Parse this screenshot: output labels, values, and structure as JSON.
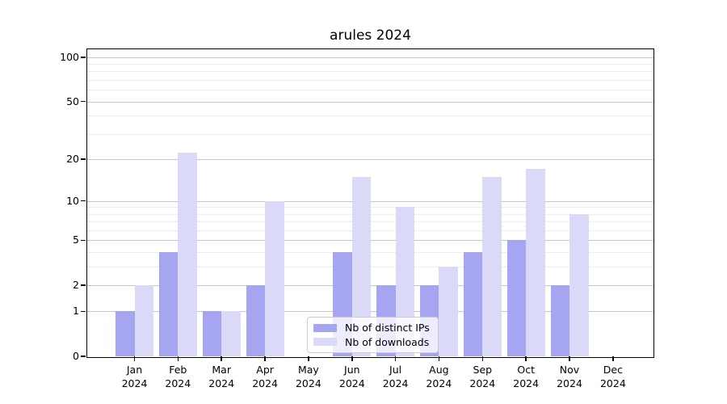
{
  "chart_data": {
    "type": "bar",
    "title": "arules 2024",
    "categories": [
      "Jan",
      "Feb",
      "Mar",
      "Apr",
      "May",
      "Jun",
      "Jul",
      "Aug",
      "Sep",
      "Oct",
      "Nov",
      "Dec"
    ],
    "year_label": "2024",
    "series": [
      {
        "name": "Nb of distinct IPs",
        "color": "#a5a5f2",
        "values": [
          1,
          4,
          1,
          2,
          0,
          4,
          2,
          2,
          4,
          5,
          2,
          0
        ]
      },
      {
        "name": "Nb of downloads",
        "color": "#dadaf8",
        "values": [
          2,
          22,
          1,
          10,
          0,
          15,
          9,
          3,
          15,
          17,
          8,
          0
        ]
      }
    ],
    "yscale": "log1p",
    "yticks": [
      0,
      1,
      2,
      5,
      10,
      20,
      50,
      100
    ],
    "yticks_minor": [
      3,
      4,
      6,
      7,
      8,
      9,
      30,
      40,
      60,
      70,
      80,
      90
    ],
    "ylim": [
      0,
      113
    ],
    "xlabel": "",
    "ylabel": "",
    "grid": "horizontal",
    "legend_position": "inside-bottom-center"
  },
  "colors": {
    "background": "#ffffff",
    "axis": "#000000",
    "grid_major": "#c6c6c6",
    "grid_minor": "#ececec",
    "legend_border": "#cccccc"
  }
}
